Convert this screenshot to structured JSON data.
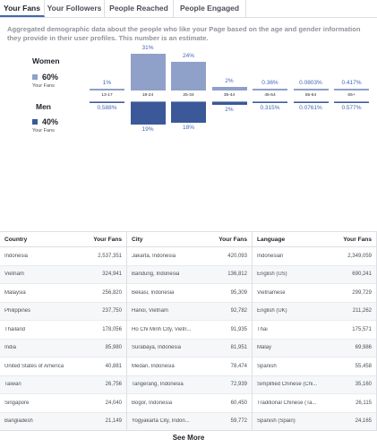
{
  "tabs": [
    "Your Fans",
    "Your Followers",
    "People Reached",
    "People Engaged"
  ],
  "description": "Aggregated demographic data about the people who like your Page based on the age and gender information they provide in their user profiles. This number is an estimate.",
  "women": {
    "label": "Women",
    "percent": "60%",
    "sub": "Your Fans",
    "color": "#8fa0c9"
  },
  "men": {
    "label": "Men",
    "percent": "40%",
    "sub": "Your Fans",
    "color": "#3b5998"
  },
  "chart_data": {
    "type": "bar",
    "categories": [
      "13-17",
      "18-24",
      "25-34",
      "35-44",
      "45-54",
      "55-64",
      "65+"
    ],
    "series": [
      {
        "name": "Women",
        "values": [
          1,
          31,
          24,
          2,
          0.36,
          0.0803,
          0.417
        ],
        "labels": [
          "1%",
          "31%",
          "24%",
          "2%",
          "0.36%",
          "0.0803%",
          "0.417%"
        ]
      },
      {
        "name": "Men",
        "values": [
          0.588,
          19,
          18,
          2,
          0.315,
          0.0761,
          0.577
        ],
        "labels": [
          "0.588%",
          "19%",
          "18%",
          "2%",
          "0.315%",
          "0.0761%",
          "0.577%"
        ]
      }
    ],
    "ylim": [
      0,
      31
    ]
  },
  "tables": [
    {
      "header": "Country",
      "value_header": "Your Fans",
      "rows": [
        [
          "Indonesia",
          "2,537,351"
        ],
        [
          "Vietnam",
          "324,941"
        ],
        [
          "Malaysia",
          "256,820"
        ],
        [
          "Philippines",
          "237,750"
        ],
        [
          "Thailand",
          "178,056"
        ],
        [
          "India",
          "85,980"
        ],
        [
          "United States of America",
          "40,881"
        ],
        [
          "Taiwan",
          "26,756"
        ],
        [
          "Singapore",
          "24,040"
        ],
        [
          "Bangladesh",
          "21,149"
        ]
      ]
    },
    {
      "header": "City",
      "value_header": "Your Fans",
      "rows": [
        [
          "Jakarta, Indonesia",
          "420,093"
        ],
        [
          "Bandung, Indonesia",
          "136,812"
        ],
        [
          "Bekasi, Indonesia",
          "95,309"
        ],
        [
          "Hanoi, Vietnam",
          "92,782"
        ],
        [
          "Ho Chi Minh City, Vietn...",
          "91,935"
        ],
        [
          "Surabaya, Indonesia",
          "81,951"
        ],
        [
          "Medan, Indonesia",
          "78,474"
        ],
        [
          "Tangerang, Indonesia",
          "72,939"
        ],
        [
          "Bogor, Indonesia",
          "60,450"
        ],
        [
          "Yogyakarta City, Indon...",
          "59,772"
        ]
      ]
    },
    {
      "header": "Language",
      "value_header": "Your Fans",
      "rows": [
        [
          "Indonesian",
          "2,349,059"
        ],
        [
          "English (US)",
          "690,241"
        ],
        [
          "Vietnamese",
          "299,729"
        ],
        [
          "English (UK)",
          "211,262"
        ],
        [
          "Thai",
          "175,571"
        ],
        [
          "Malay",
          "69,986"
        ],
        [
          "Spanish",
          "55,458"
        ],
        [
          "Simplified Chinese (Chi...",
          "35,160"
        ],
        [
          "Traditional Chinese (Ta...",
          "26,115"
        ],
        [
          "Spanish (Spain)",
          "24,165"
        ]
      ]
    }
  ],
  "see_more": "See More"
}
